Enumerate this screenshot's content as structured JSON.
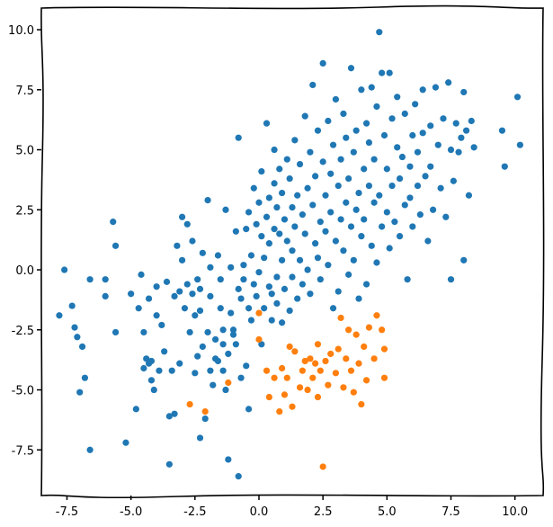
{
  "chart_data": {
    "type": "scatter",
    "title": "",
    "xlabel": "",
    "ylabel": "",
    "xlim": [
      -8.5,
      11.1
    ],
    "ylim": [
      -9.4,
      10.9
    ],
    "grid": false,
    "x_ticks": [
      -7.5,
      -5.0,
      -2.5,
      0.0,
      2.5,
      5.0,
      7.5,
      10.0
    ],
    "x_tick_labels": [
      "-7.5",
      "-5.0",
      "-2.5",
      "0.0",
      "2.5",
      "5.0",
      "7.5",
      "10.0"
    ],
    "y_ticks": [
      -7.5,
      -5.0,
      -2.5,
      0.0,
      2.5,
      5.0,
      7.5,
      10.0
    ],
    "y_tick_labels": [
      "-7.5",
      "-5.0",
      "-2.5",
      "0.0",
      "2.5",
      "5.0",
      "7.5",
      "10.0"
    ],
    "series": [
      {
        "color": "#1f77b4",
        "points": [
          [
            -7.8,
            -1.9
          ],
          [
            -7.6,
            0.0
          ],
          [
            -7.3,
            -1.5
          ],
          [
            -7.2,
            -2.4
          ],
          [
            -7.1,
            -2.8
          ],
          [
            -7.0,
            -5.1
          ],
          [
            -6.9,
            -3.2
          ],
          [
            -6.8,
            -4.5
          ],
          [
            -6.6,
            -0.4
          ],
          [
            -6.6,
            -7.5
          ],
          [
            -6.0,
            -0.4
          ],
          [
            -6.0,
            -1.1
          ],
          [
            -5.7,
            2.0
          ],
          [
            -5.6,
            -2.6
          ],
          [
            -5.6,
            1.0
          ],
          [
            -5.2,
            -7.2
          ],
          [
            -5.0,
            -1.0
          ],
          [
            -4.8,
            -5.8
          ],
          [
            -4.7,
            -1.6
          ],
          [
            -4.6,
            -0.2
          ],
          [
            -4.5,
            -4.1
          ],
          [
            -4.5,
            -2.6
          ],
          [
            -4.4,
            -3.7
          ],
          [
            -4.3,
            -3.9
          ],
          [
            -4.3,
            -1.2
          ],
          [
            -4.2,
            -3.8
          ],
          [
            -4.2,
            -4.6
          ],
          [
            -4.1,
            -5.0
          ],
          [
            -4.0,
            -0.7
          ],
          [
            -4.0,
            -1.9
          ],
          [
            -3.9,
            -4.2
          ],
          [
            -3.8,
            -2.3
          ],
          [
            -3.7,
            -3.4
          ],
          [
            -3.6,
            -0.5
          ],
          [
            -3.5,
            -6.1
          ],
          [
            -3.5,
            -8.1
          ],
          [
            -3.4,
            -4.2
          ],
          [
            -3.3,
            -1.1
          ],
          [
            -3.3,
            -6.0
          ],
          [
            -3.2,
            1.0
          ],
          [
            -3.1,
            -3.9
          ],
          [
            -3.1,
            -0.9
          ],
          [
            -3.0,
            2.2
          ],
          [
            -3.0,
            0.4
          ],
          [
            -2.9,
            -1.6
          ],
          [
            -2.8,
            -0.6
          ],
          [
            -2.8,
            1.9
          ],
          [
            -2.7,
            -2.6
          ],
          [
            -2.6,
            -1.0
          ],
          [
            -2.6,
            1.2
          ],
          [
            -2.5,
            -1.9
          ],
          [
            -2.5,
            -4.3
          ],
          [
            -2.4,
            -0.4
          ],
          [
            -2.4,
            -3.6
          ],
          [
            -2.3,
            -1.7
          ],
          [
            -2.3,
            -0.8
          ],
          [
            -2.3,
            -7.0
          ],
          [
            -2.2,
            -3.2
          ],
          [
            -2.2,
            0.7
          ],
          [
            -2.1,
            -6.2
          ],
          [
            -2.0,
            2.9
          ],
          [
            -2.0,
            -2.6
          ],
          [
            -1.9,
            -4.2
          ],
          [
            -1.9,
            0.1
          ],
          [
            -1.9,
            -1.1
          ],
          [
            -1.8,
            -4.8
          ],
          [
            -1.7,
            -3.7
          ],
          [
            -1.7,
            -2.9
          ],
          [
            -1.6,
            0.6
          ],
          [
            -1.6,
            -3.8
          ],
          [
            -1.5,
            -1.6
          ],
          [
            -1.5,
            -0.4
          ],
          [
            -1.4,
            -2.5
          ],
          [
            -1.4,
            -3.1
          ],
          [
            -1.4,
            -4.2
          ],
          [
            -1.3,
            2.5
          ],
          [
            -1.3,
            -5.0
          ],
          [
            -1.2,
            -7.9
          ],
          [
            -1.2,
            -3.5
          ],
          [
            -1.1,
            0.1
          ],
          [
            -1.1,
            -1.8
          ],
          [
            -1.0,
            -2.5
          ],
          [
            -1.0,
            -2.7
          ],
          [
            -0.9,
            -3.1
          ],
          [
            -0.9,
            1.6
          ],
          [
            -0.8,
            -8.6
          ],
          [
            -0.8,
            -0.8
          ],
          [
            -0.8,
            5.5
          ],
          [
            -0.7,
            -1.2
          ],
          [
            -0.7,
            -4.5
          ],
          [
            -0.6,
            0.2
          ],
          [
            -0.6,
            -0.4
          ],
          [
            -0.5,
            1.7
          ],
          [
            -0.5,
            -4.0
          ],
          [
            -0.4,
            -1.6
          ],
          [
            -0.4,
            2.4
          ],
          [
            -0.4,
            -5.8
          ],
          [
            -0.3,
            0.6
          ],
          [
            -0.3,
            -2.1
          ],
          [
            -0.2,
            3.4
          ],
          [
            -0.2,
            -0.6
          ],
          [
            -0.1,
            1.9
          ],
          [
            -0.1,
            -1.1
          ],
          [
            0.0,
            -0.1
          ],
          [
            0.0,
            2.8
          ],
          [
            0.1,
            1.4
          ],
          [
            0.1,
            -3.1
          ],
          [
            0.1,
            4.1
          ],
          [
            0.2,
            -1.6
          ],
          [
            0.2,
            0.5
          ],
          [
            0.3,
            6.1
          ],
          [
            0.3,
            2.2
          ],
          [
            0.4,
            -0.7
          ],
          [
            0.4,
            1.1
          ],
          [
            0.4,
            3.0
          ],
          [
            0.5,
            -2.1
          ],
          [
            0.5,
            -1.0
          ],
          [
            0.6,
            3.6
          ],
          [
            0.6,
            1.7
          ],
          [
            0.6,
            5.0
          ],
          [
            0.7,
            -0.3
          ],
          [
            0.7,
            2.6
          ],
          [
            0.7,
            -1.4
          ],
          [
            0.8,
            4.2
          ],
          [
            0.8,
            1.5
          ],
          [
            0.9,
            0.4
          ],
          [
            0.9,
            -2.2
          ],
          [
            0.9,
            3.2
          ],
          [
            1.0,
            -0.8
          ],
          [
            1.0,
            2.1
          ],
          [
            1.1,
            4.6
          ],
          [
            1.1,
            1.2
          ],
          [
            1.2,
            -1.7
          ],
          [
            1.2,
            3.8
          ],
          [
            1.3,
            0.8
          ],
          [
            1.3,
            2.6
          ],
          [
            1.3,
            -0.3
          ],
          [
            1.4,
            5.4
          ],
          [
            1.4,
            1.8
          ],
          [
            1.5,
            -1.2
          ],
          [
            1.5,
            3.1
          ],
          [
            1.6,
            0.4
          ],
          [
            1.6,
            4.4
          ],
          [
            1.7,
            2.3
          ],
          [
            1.7,
            -0.6
          ],
          [
            1.8,
            6.4
          ],
          [
            1.8,
            1.5
          ],
          [
            1.9,
            3.4
          ],
          [
            1.9,
            0.0
          ],
          [
            2.0,
            4.9
          ],
          [
            2.0,
            -1.0
          ],
          [
            2.1,
            2.7
          ],
          [
            2.1,
            7.7
          ],
          [
            2.2,
            1.1
          ],
          [
            2.2,
            3.9
          ],
          [
            2.3,
            0.5
          ],
          [
            2.3,
            5.8
          ],
          [
            2.4,
            2.0
          ],
          [
            2.4,
            -0.4
          ],
          [
            2.5,
            4.5
          ],
          [
            2.5,
            8.6
          ],
          [
            2.6,
            1.6
          ],
          [
            2.6,
            3.1
          ],
          [
            2.7,
            6.2
          ],
          [
            2.7,
            0.2
          ],
          [
            2.8,
            2.4
          ],
          [
            2.8,
            4.0
          ],
          [
            2.9,
            -1.6
          ],
          [
            2.9,
            5.2
          ],
          [
            3.0,
            1.2
          ],
          [
            3.0,
            7.1
          ],
          [
            3.1,
            3.5
          ],
          [
            3.1,
            -0.9
          ],
          [
            3.2,
            2.1
          ],
          [
            3.2,
            4.6
          ],
          [
            3.3,
            0.8
          ],
          [
            3.3,
            6.5
          ],
          [
            3.4,
            2.8
          ],
          [
            3.4,
            5.5
          ],
          [
            3.5,
            -0.2
          ],
          [
            3.5,
            3.8
          ],
          [
            3.6,
            1.8
          ],
          [
            3.6,
            8.4
          ],
          [
            3.7,
            4.9
          ],
          [
            3.7,
            0.4
          ],
          [
            3.8,
            2.5
          ],
          [
            3.8,
            5.8
          ],
          [
            3.9,
            -1.2
          ],
          [
            3.9,
            3.2
          ],
          [
            4.0,
            7.5
          ],
          [
            4.0,
            1.4
          ],
          [
            4.1,
            4.2
          ],
          [
            4.1,
            2.1
          ],
          [
            4.2,
            6.1
          ],
          [
            4.2,
            -0.6
          ],
          [
            4.3,
            3.5
          ],
          [
            4.3,
            5.3
          ],
          [
            4.4,
            1.0
          ],
          [
            4.4,
            7.6
          ],
          [
            4.5,
            2.8
          ],
          [
            4.5,
            4.6
          ],
          [
            4.6,
            0.3
          ],
          [
            4.6,
            6.8
          ],
          [
            4.7,
            9.9
          ],
          [
            4.7,
            3.1
          ],
          [
            4.8,
            8.2
          ],
          [
            4.8,
            1.8
          ],
          [
            4.9,
            5.6
          ],
          [
            5.0,
            2.4
          ],
          [
            5.0,
            4.2
          ],
          [
            5.1,
            8.2
          ],
          [
            5.1,
            0.9
          ],
          [
            5.2,
            6.3
          ],
          [
            5.2,
            3.5
          ],
          [
            5.3,
            2.0
          ],
          [
            5.4,
            5.1
          ],
          [
            5.4,
            7.2
          ],
          [
            5.5,
            3.8
          ],
          [
            5.5,
            1.4
          ],
          [
            5.6,
            4.7
          ],
          [
            5.7,
            6.5
          ],
          [
            5.7,
            2.7
          ],
          [
            5.8,
            -0.4
          ],
          [
            5.9,
            4.3
          ],
          [
            5.9,
            3.0
          ],
          [
            6.0,
            5.6
          ],
          [
            6.0,
            1.8
          ],
          [
            6.1,
            6.9
          ],
          [
            6.2,
            3.5
          ],
          [
            6.2,
            4.9
          ],
          [
            6.3,
            2.3
          ],
          [
            6.4,
            5.7
          ],
          [
            6.4,
            7.5
          ],
          [
            6.5,
            3.9
          ],
          [
            6.6,
            1.2
          ],
          [
            6.7,
            6.0
          ],
          [
            6.7,
            4.3
          ],
          [
            6.8,
            2.5
          ],
          [
            6.9,
            7.6
          ],
          [
            7.0,
            5.2
          ],
          [
            7.1,
            3.4
          ],
          [
            7.2,
            6.3
          ],
          [
            7.3,
            2.2
          ],
          [
            7.4,
            7.8
          ],
          [
            7.5,
            -0.4
          ],
          [
            7.5,
            5.0
          ],
          [
            7.6,
            3.7
          ],
          [
            7.7,
            6.1
          ],
          [
            7.8,
            4.9
          ],
          [
            7.9,
            5.5
          ],
          [
            8.0,
            7.4
          ],
          [
            8.0,
            0.4
          ],
          [
            8.1,
            5.8
          ],
          [
            8.2,
            3.1
          ],
          [
            8.3,
            6.2
          ],
          [
            8.4,
            5.1
          ],
          [
            9.5,
            5.8
          ],
          [
            9.6,
            4.3
          ],
          [
            10.1,
            7.2
          ],
          [
            10.2,
            5.2
          ]
        ]
      },
      {
        "color": "#ff7f0e",
        "points": [
          [
            -2.7,
            -5.6
          ],
          [
            -2.1,
            -5.9
          ],
          [
            -1.2,
            -4.7
          ],
          [
            0.0,
            -1.8
          ],
          [
            0.0,
            -2.9
          ],
          [
            0.3,
            -4.2
          ],
          [
            0.4,
            -5.3
          ],
          [
            0.6,
            -4.5
          ],
          [
            0.8,
            -5.9
          ],
          [
            0.9,
            -4.1
          ],
          [
            1.0,
            -5.2
          ],
          [
            1.1,
            -4.5
          ],
          [
            1.2,
            -3.2
          ],
          [
            1.3,
            -5.7
          ],
          [
            1.4,
            -3.4
          ],
          [
            1.6,
            -4.9
          ],
          [
            1.7,
            -4.2
          ],
          [
            1.8,
            -3.8
          ],
          [
            1.9,
            -5.0
          ],
          [
            2.0,
            -3.7
          ],
          [
            2.1,
            -4.5
          ],
          [
            2.2,
            -3.9
          ],
          [
            2.3,
            -3.1
          ],
          [
            2.3,
            -5.3
          ],
          [
            2.4,
            -4.2
          ],
          [
            2.5,
            -8.2
          ],
          [
            2.6,
            -3.8
          ],
          [
            2.7,
            -4.8
          ],
          [
            2.8,
            -3.5
          ],
          [
            3.0,
            -4.3
          ],
          [
            3.1,
            -3.3
          ],
          [
            3.2,
            -2.0
          ],
          [
            3.3,
            -4.9
          ],
          [
            3.4,
            -3.7
          ],
          [
            3.5,
            -2.5
          ],
          [
            3.6,
            -4.2
          ],
          [
            3.7,
            -5.1
          ],
          [
            3.8,
            -2.7
          ],
          [
            3.9,
            -3.9
          ],
          [
            4.0,
            -5.6
          ],
          [
            4.1,
            -3.2
          ],
          [
            4.2,
            -4.6
          ],
          [
            4.3,
            -2.4
          ],
          [
            4.5,
            -3.7
          ],
          [
            4.6,
            -1.9
          ],
          [
            4.8,
            -2.5
          ],
          [
            4.9,
            -3.3
          ],
          [
            4.9,
            -4.5
          ]
        ]
      }
    ]
  }
}
